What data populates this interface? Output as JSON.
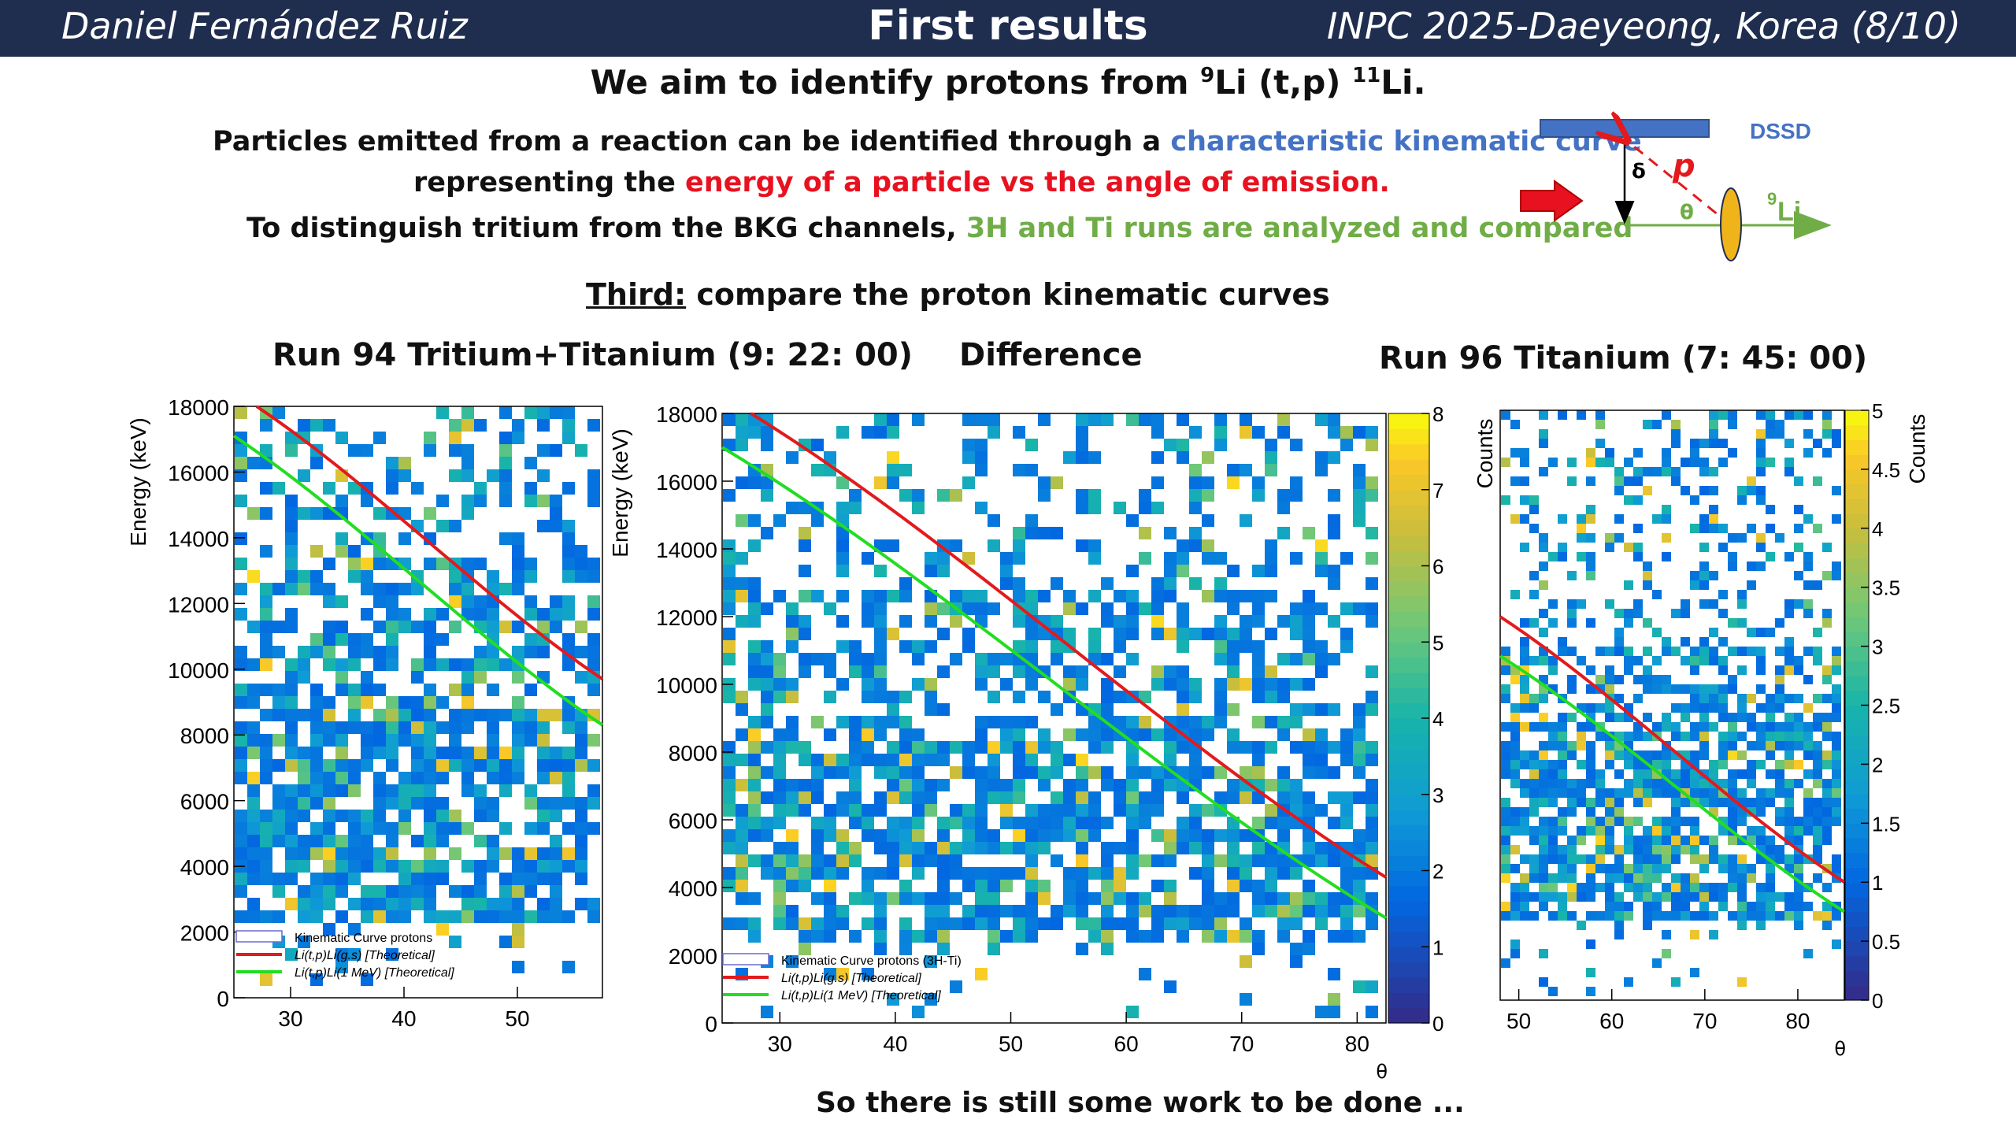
{
  "header": {
    "author": "Daniel Fernández Ruiz",
    "title": "First results",
    "conference": "INPC 2025-Daeyeong, Korea    (8/10)"
  },
  "aim": {
    "pre": "We aim to identify protons from ",
    "sup1": "9",
    "mid": "Li (t,p) ",
    "sup2": "11",
    "post": "Li."
  },
  "intro": {
    "l1_a": "Particles emitted from a reaction can be identified through a ",
    "l1_b": "characteristic kinematic curve",
    "l2_a": "representing the ",
    "l2_b": "energy of a particle vs the angle of emission.",
    "l3_a": "To distinguish tritium from the BKG channels, ",
    "l3_b": "3H and Ti runs are analyzed and compared"
  },
  "third": {
    "underlined": "Third:",
    "rest": " compare the proton kinematic curves"
  },
  "diagram": {
    "detector": "DSSD",
    "delta": "δ",
    "particle": "p",
    "theta": "θ",
    "beam": "Li",
    "beam_sup": "9"
  },
  "plot_titles": {
    "left": "Run 94 Tritium+Titanium (9: 22: 00)",
    "middle": "Difference",
    "right": "Run 96 Titanium (7: 45: 00)"
  },
  "footer": "So there is still some work to be done ...",
  "colors": {
    "header_bg": "#1f2d4f",
    "curve_gs": "#e31a1c",
    "curve_1mev": "#22dd22",
    "accent_blue": "#4472c4"
  },
  "chart_data": [
    {
      "type": "heatmap",
      "title": "Run 94 Tritium+Titanium (9: 22: 00)",
      "ylabel": "Energy (keV)",
      "xlabel": "",
      "xlim": [
        25,
        57.5
      ],
      "ylim": [
        0,
        18000
      ],
      "xticks": [
        30,
        40,
        50
      ],
      "yticks": [
        0,
        2000,
        4000,
        6000,
        8000,
        10000,
        12000,
        14000,
        16000,
        18000
      ],
      "colorbar": false,
      "curves": [
        {
          "name": "Li(t,p)Li(g.s) [Theoretical]",
          "x": [
            27,
            57.5
          ],
          "y": [
            18000,
            9700
          ]
        },
        {
          "name": "Li(t,p)Li(1 MeV) [Theoretical]",
          "x": [
            25,
            57.5
          ],
          "y": [
            17100,
            8300
          ]
        }
      ],
      "legend": [
        "Kinematic Curve protons",
        "Li(t,p)Li(g.s) [Theoretical]",
        "Li(t,p)Li(1 MeV) [Theoretical]"
      ],
      "legend_position": "bottom-left"
    },
    {
      "type": "heatmap",
      "title": "Difference",
      "ylabel": "Energy (keV)",
      "xlabel": "θ",
      "xlim": [
        25,
        82.5
      ],
      "ylim": [
        0,
        18000
      ],
      "xticks": [
        30,
        40,
        50,
        60,
        70,
        80
      ],
      "yticks": [
        0,
        2000,
        4000,
        6000,
        8000,
        10000,
        12000,
        14000,
        16000,
        18000
      ],
      "colorbar": true,
      "zlabel": "Counts",
      "zlim": [
        0,
        8
      ],
      "zticks": [
        0,
        1,
        2,
        3,
        4,
        5,
        6,
        7,
        8
      ],
      "curves": [
        {
          "name": "Li(t,p)Li(g.s) [Theoretical]",
          "x": [
            27.5,
            82.5
          ],
          "y": [
            18000,
            4300
          ]
        },
        {
          "name": "Li(t,p)Li(1 MeV) [Theoretical]",
          "x": [
            25,
            82.5
          ],
          "y": [
            17000,
            3100
          ]
        }
      ],
      "legend": [
        "Kinematic Curve protons (3H-Ti)",
        "Li(t,p)Li(g.s) [Theoretical]",
        "Li(t,p)Li(1 MeV) [Theoretical]"
      ],
      "legend_position": "bottom-left"
    },
    {
      "type": "heatmap",
      "title": "Run 96 Titanium (7: 45: 00)",
      "ylabel": "",
      "xlabel": "θ",
      "xlim": [
        48,
        85
      ],
      "ylim": [
        0,
        18000
      ],
      "xticks": [
        50,
        60,
        70,
        80
      ],
      "colorbar": true,
      "zlabel": "Counts",
      "zlim": [
        0,
        5
      ],
      "zticks": [
        0,
        0.5,
        1,
        1.5,
        2,
        2.5,
        3,
        3.5,
        4,
        4.5,
        5
      ],
      "curves": [
        {
          "name": "Li(t,p)Li(g.s)",
          "x": [
            48,
            85
          ],
          "y": [
            11700,
            3600
          ]
        },
        {
          "name": "Li(t,p)Li(1 MeV)",
          "x": [
            48,
            85
          ],
          "y": [
            10500,
            2700
          ]
        }
      ]
    }
  ]
}
